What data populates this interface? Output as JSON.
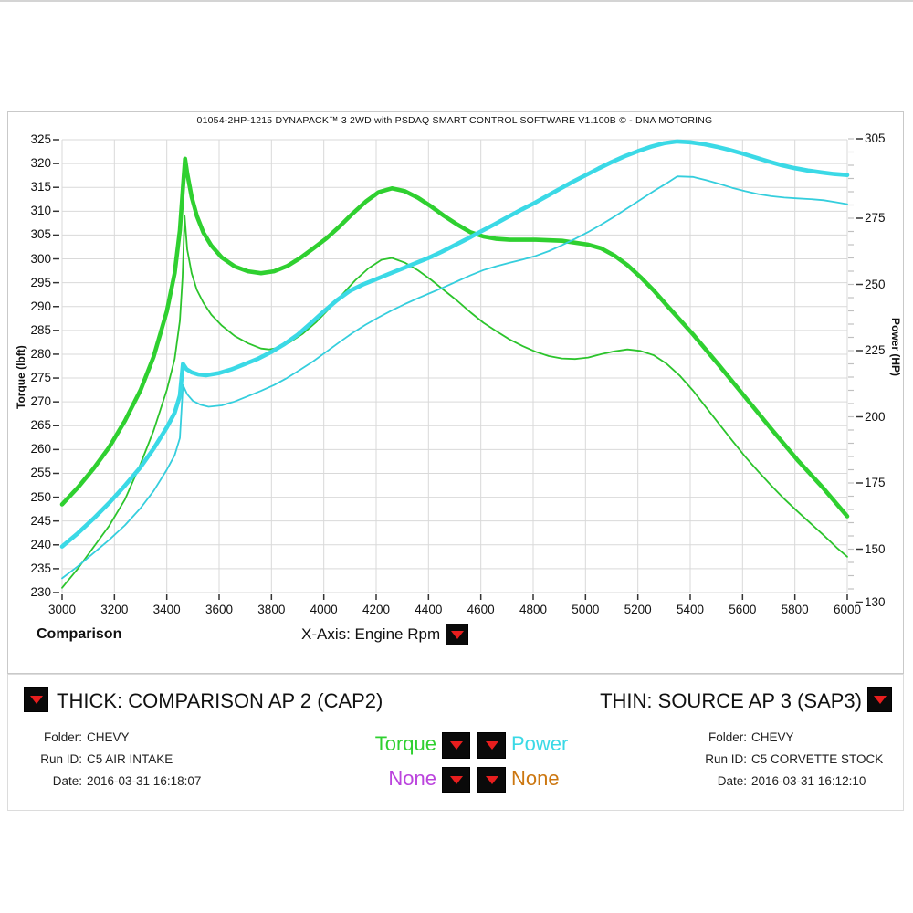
{
  "header": {
    "title": "01054-2HP-1215 DYNAPACK™ 3 2WD with PSDAQ SMART CONTROL SOFTWARE V1.100B © - DNA MOTORING"
  },
  "chart_data": {
    "type": "line",
    "title": "01054-2HP-1215 DYNAPACK™ 3 2WD with PSDAQ SMART CONTROL SOFTWARE V1.100B © - DNA MOTORING",
    "grid": true,
    "legend_position": "bottom",
    "x_axis": {
      "name": "Engine Rpm",
      "selector_label": "X-Axis: Engine Rpm",
      "min": 3000,
      "max": 6000,
      "step": 200,
      "ticks": [
        3000,
        3200,
        3400,
        3600,
        3800,
        4000,
        4200,
        4400,
        4600,
        4800,
        5000,
        5200,
        5400,
        5600,
        5800,
        6000
      ]
    },
    "y_left": {
      "name": "Torque (lbft)",
      "min": 230,
      "max": 325,
      "step": 5,
      "ticks": [
        325,
        320,
        315,
        310,
        305,
        300,
        295,
        290,
        285,
        280,
        275,
        270,
        265,
        260,
        255,
        250,
        245,
        240,
        235,
        230
      ]
    },
    "y_right": {
      "name": "Power (HP)",
      "min": 130,
      "max": 305,
      "minor_step": 5,
      "ticks": [
        305,
        275,
        250,
        225,
        200,
        175,
        150,
        130
      ]
    },
    "corner_label": "Comparison",
    "series": [
      {
        "id": "sap3-torque",
        "channel": "Torque",
        "run": "SAP3",
        "style": "thin",
        "axis": "left",
        "color": "#2cc42c",
        "points": [
          [
            3000,
            231
          ],
          [
            3060,
            235
          ],
          [
            3120,
            239.5
          ],
          [
            3180,
            244
          ],
          [
            3240,
            249.5
          ],
          [
            3300,
            257
          ],
          [
            3350,
            264
          ],
          [
            3400,
            272.5
          ],
          [
            3430,
            279
          ],
          [
            3450,
            287
          ],
          [
            3460,
            296
          ],
          [
            3468,
            309
          ],
          [
            3478,
            302
          ],
          [
            3495,
            297
          ],
          [
            3515,
            293.5
          ],
          [
            3540,
            290.8
          ],
          [
            3570,
            288.3
          ],
          [
            3610,
            286
          ],
          [
            3660,
            283.8
          ],
          [
            3710,
            282.3
          ],
          [
            3760,
            281.2
          ],
          [
            3790,
            281
          ],
          [
            3820,
            281.3
          ],
          [
            3870,
            282.5
          ],
          [
            3920,
            284.3
          ],
          [
            3970,
            286.7
          ],
          [
            4020,
            289.5
          ],
          [
            4070,
            292.5
          ],
          [
            4120,
            295.5
          ],
          [
            4170,
            298
          ],
          [
            4220,
            299.8
          ],
          [
            4260,
            300.2
          ],
          [
            4310,
            299.2
          ],
          [
            4360,
            297.6
          ],
          [
            4410,
            295.6
          ],
          [
            4460,
            293.4
          ],
          [
            4510,
            291.2
          ],
          [
            4560,
            288.8
          ],
          [
            4610,
            286.6
          ],
          [
            4660,
            284.8
          ],
          [
            4710,
            283.1
          ],
          [
            4760,
            281.7
          ],
          [
            4810,
            280.5
          ],
          [
            4860,
            279.6
          ],
          [
            4910,
            279.1
          ],
          [
            4960,
            279
          ],
          [
            5010,
            279.3
          ],
          [
            5060,
            280
          ],
          [
            5110,
            280.6
          ],
          [
            5160,
            281
          ],
          [
            5210,
            280.7
          ],
          [
            5260,
            279.8
          ],
          [
            5310,
            278
          ],
          [
            5360,
            275.5
          ],
          [
            5410,
            272.4
          ],
          [
            5460,
            268.9
          ],
          [
            5510,
            265.4
          ],
          [
            5560,
            261.9
          ],
          [
            5610,
            258.5
          ],
          [
            5660,
            255.4
          ],
          [
            5710,
            252.4
          ],
          [
            5760,
            249.6
          ],
          [
            5810,
            247
          ],
          [
            5860,
            244.5
          ],
          [
            5910,
            242
          ],
          [
            5960,
            239.4
          ],
          [
            6000,
            237.5
          ]
        ]
      },
      {
        "id": "cap2-torque",
        "channel": "Torque",
        "run": "CAP2",
        "style": "thick",
        "axis": "left",
        "color": "#2fd030",
        "points": [
          [
            3000,
            248.5
          ],
          [
            3060,
            252
          ],
          [
            3120,
            256
          ],
          [
            3180,
            260.5
          ],
          [
            3240,
            266
          ],
          [
            3300,
            272.5
          ],
          [
            3350,
            279.5
          ],
          [
            3400,
            289
          ],
          [
            3430,
            297
          ],
          [
            3450,
            306
          ],
          [
            3462,
            315
          ],
          [
            3470,
            321
          ],
          [
            3478,
            318
          ],
          [
            3495,
            313
          ],
          [
            3515,
            309
          ],
          [
            3540,
            305.5
          ],
          [
            3570,
            302.8
          ],
          [
            3610,
            300.3
          ],
          [
            3660,
            298.4
          ],
          [
            3710,
            297.4
          ],
          [
            3760,
            297
          ],
          [
            3810,
            297.4
          ],
          [
            3860,
            298.5
          ],
          [
            3910,
            300.2
          ],
          [
            3960,
            302.2
          ],
          [
            4010,
            304.3
          ],
          [
            4060,
            306.8
          ],
          [
            4110,
            309.5
          ],
          [
            4160,
            312
          ],
          [
            4210,
            314
          ],
          [
            4260,
            314.8
          ],
          [
            4310,
            314.2
          ],
          [
            4360,
            312.8
          ],
          [
            4410,
            311
          ],
          [
            4460,
            309
          ],
          [
            4510,
            307.2
          ],
          [
            4560,
            305.6
          ],
          [
            4610,
            304.7
          ],
          [
            4660,
            304.2
          ],
          [
            4710,
            304
          ],
          [
            4810,
            304
          ],
          [
            4910,
            303.8
          ],
          [
            5010,
            303
          ],
          [
            5060,
            302.2
          ],
          [
            5110,
            300.7
          ],
          [
            5160,
            298.7
          ],
          [
            5210,
            296.2
          ],
          [
            5260,
            293.4
          ],
          [
            5310,
            290.3
          ],
          [
            5410,
            284.2
          ],
          [
            5510,
            277.7
          ],
          [
            5610,
            271
          ],
          [
            5710,
            264.3
          ],
          [
            5810,
            257.8
          ],
          [
            5910,
            251.8
          ],
          [
            6000,
            246
          ]
        ]
      },
      {
        "id": "sap3-power",
        "channel": "Power",
        "run": "SAP3",
        "style": "thin",
        "axis": "right",
        "color": "#35cedd",
        "points": [
          [
            3000,
            139
          ],
          [
            3060,
            143.5
          ],
          [
            3120,
            148.5
          ],
          [
            3180,
            153.5
          ],
          [
            3240,
            159
          ],
          [
            3300,
            165.5
          ],
          [
            3350,
            172
          ],
          [
            3400,
            180
          ],
          [
            3430,
            185.5
          ],
          [
            3450,
            192
          ],
          [
            3462,
            212
          ],
          [
            3478,
            208.5
          ],
          [
            3500,
            206
          ],
          [
            3530,
            204.5
          ],
          [
            3560,
            203.8
          ],
          [
            3610,
            204.3
          ],
          [
            3660,
            205.8
          ],
          [
            3710,
            207.8
          ],
          [
            3760,
            209.8
          ],
          [
            3810,
            212
          ],
          [
            3860,
            214.7
          ],
          [
            3910,
            217.8
          ],
          [
            3960,
            221
          ],
          [
            4010,
            224.6
          ],
          [
            4060,
            228.2
          ],
          [
            4110,
            231.7
          ],
          [
            4160,
            234.8
          ],
          [
            4210,
            237.6
          ],
          [
            4260,
            240.2
          ],
          [
            4310,
            242.6
          ],
          [
            4360,
            244.8
          ],
          [
            4410,
            246.9
          ],
          [
            4460,
            249
          ],
          [
            4510,
            251.2
          ],
          [
            4560,
            253.4
          ],
          [
            4610,
            255.4
          ],
          [
            4660,
            256.9
          ],
          [
            4710,
            258.2
          ],
          [
            4760,
            259.4
          ],
          [
            4810,
            260.8
          ],
          [
            4860,
            262.6
          ],
          [
            4910,
            264.8
          ],
          [
            4960,
            267.2
          ],
          [
            5010,
            269.8
          ],
          [
            5060,
            272.6
          ],
          [
            5110,
            275.6
          ],
          [
            5160,
            278.8
          ],
          [
            5210,
            282
          ],
          [
            5260,
            285.2
          ],
          [
            5310,
            288.2
          ],
          [
            5350,
            290.8
          ],
          [
            5410,
            290.6
          ],
          [
            5460,
            289.4
          ],
          [
            5510,
            288
          ],
          [
            5560,
            286.5
          ],
          [
            5610,
            285.2
          ],
          [
            5660,
            284.1
          ],
          [
            5710,
            283.3
          ],
          [
            5760,
            282.8
          ],
          [
            5810,
            282.5
          ],
          [
            5860,
            282.2
          ],
          [
            5910,
            281.8
          ],
          [
            5960,
            281
          ],
          [
            6000,
            280.3
          ]
        ]
      },
      {
        "id": "cap2-power",
        "channel": "Power",
        "run": "CAP2",
        "style": "thick",
        "axis": "right",
        "color": "#3bd9e6",
        "points": [
          [
            3000,
            151
          ],
          [
            3060,
            156
          ],
          [
            3120,
            161.5
          ],
          [
            3180,
            167.5
          ],
          [
            3240,
            174
          ],
          [
            3300,
            181
          ],
          [
            3350,
            188
          ],
          [
            3400,
            196
          ],
          [
            3430,
            201.5
          ],
          [
            3450,
            208
          ],
          [
            3462,
            220
          ],
          [
            3475,
            218
          ],
          [
            3495,
            216.8
          ],
          [
            3520,
            216
          ],
          [
            3550,
            215.7
          ],
          [
            3600,
            216.5
          ],
          [
            3650,
            218
          ],
          [
            3700,
            220
          ],
          [
            3750,
            222
          ],
          [
            3800,
            224.5
          ],
          [
            3850,
            227.5
          ],
          [
            3900,
            231
          ],
          [
            3950,
            235.3
          ],
          [
            4000,
            239.8
          ],
          [
            4050,
            244
          ],
          [
            4100,
            247.6
          ],
          [
            4150,
            250
          ],
          [
            4200,
            252
          ],
          [
            4250,
            254
          ],
          [
            4300,
            256
          ],
          [
            4350,
            258
          ],
          [
            4400,
            260
          ],
          [
            4450,
            262.3
          ],
          [
            4500,
            264.8
          ],
          [
            4550,
            267.3
          ],
          [
            4600,
            270
          ],
          [
            4650,
            272.6
          ],
          [
            4700,
            275.3
          ],
          [
            4750,
            278
          ],
          [
            4800,
            280.5
          ],
          [
            4850,
            283.2
          ],
          [
            4900,
            286
          ],
          [
            4950,
            288.7
          ],
          [
            5000,
            291.2
          ],
          [
            5050,
            293.8
          ],
          [
            5100,
            296.2
          ],
          [
            5150,
            298.4
          ],
          [
            5200,
            300.3
          ],
          [
            5250,
            302
          ],
          [
            5300,
            303.3
          ],
          [
            5350,
            304
          ],
          [
            5400,
            303.7
          ],
          [
            5450,
            303
          ],
          [
            5500,
            302
          ],
          [
            5550,
            300.8
          ],
          [
            5600,
            299.4
          ],
          [
            5650,
            297.9
          ],
          [
            5700,
            296.4
          ],
          [
            5750,
            295
          ],
          [
            5800,
            293.9
          ],
          [
            5850,
            293
          ],
          [
            5900,
            292.3
          ],
          [
            5950,
            291.7
          ],
          [
            6000,
            291.3
          ]
        ]
      }
    ]
  },
  "footer": {
    "thick_label": "THICK: COMPARISON AP 2 (CAP2)",
    "thin_label": "THIN: SOURCE AP 3 (SAP3)",
    "left_run": {
      "folder_label": "Folder:",
      "folder": "CHEVY",
      "run_label": "Run ID:",
      "run": "C5 AIR INTAKE",
      "date_label": "Date:",
      "date": "2016-03-31 16:18:07"
    },
    "right_run": {
      "folder_label": "Folder:",
      "folder": "CHEVY",
      "run_label": "Run ID:",
      "run": "C5 CORVETTE STOCK",
      "date_label": "Date:",
      "date": "2016-03-31 16:12:10"
    },
    "channels": {
      "slot1": {
        "label": "Torque",
        "color": "#2fd030"
      },
      "slot2": {
        "label": "Power",
        "color": "#3bd9e6"
      },
      "slot3": {
        "label": "None",
        "color": "#bb44dd"
      },
      "slot4": {
        "label": "None",
        "color": "#cc7711"
      }
    }
  }
}
